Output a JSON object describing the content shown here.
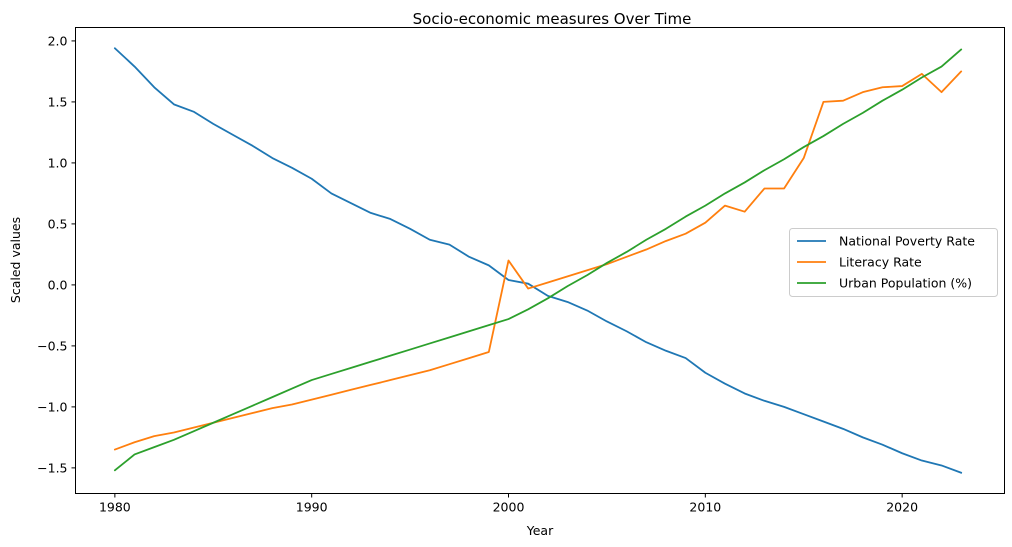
{
  "chart_data": {
    "type": "line",
    "title": "Socio-economic measures Over Time",
    "xlabel": "Year",
    "ylabel": "Scaled values",
    "xlim": [
      1978,
      2025.2
    ],
    "ylim": [
      -1.71,
      2.11
    ],
    "xticks": [
      1980,
      1990,
      2000,
      2010,
      2020
    ],
    "yticks": [
      -1.5,
      -1.0,
      -0.5,
      0.0,
      0.5,
      1.0,
      1.5,
      2.0
    ],
    "ytick_labels": [
      "−1.5",
      "−1.0",
      "−0.5",
      "0.0",
      "0.5",
      "1.0",
      "1.5",
      "2.0"
    ],
    "grid": false,
    "legend_position": "center-right",
    "x": [
      1980,
      1981,
      1982,
      1983,
      1984,
      1985,
      1986,
      1987,
      1988,
      1989,
      1990,
      1991,
      1992,
      1993,
      1994,
      1995,
      1996,
      1997,
      1998,
      1999,
      2000,
      2001,
      2002,
      2003,
      2004,
      2005,
      2006,
      2007,
      2008,
      2009,
      2010,
      2011,
      2012,
      2013,
      2014,
      2015,
      2016,
      2017,
      2018,
      2019,
      2020,
      2021,
      2022,
      2023
    ],
    "series": [
      {
        "name": "National Poverty Rate",
        "color": "#1f77b4",
        "values": [
          1.94,
          1.79,
          1.62,
          1.48,
          1.42,
          1.32,
          1.23,
          1.14,
          1.04,
          0.96,
          0.87,
          0.75,
          0.67,
          0.59,
          0.54,
          0.46,
          0.37,
          0.33,
          0.23,
          0.16,
          0.04,
          0.01,
          -0.09,
          -0.14,
          -0.21,
          -0.3,
          -0.38,
          -0.47,
          -0.54,
          -0.6,
          -0.72,
          -0.81,
          -0.89,
          -0.95,
          -1.0,
          -1.06,
          -1.12,
          -1.18,
          -1.25,
          -1.31,
          -1.38,
          -1.44,
          -1.48,
          -1.54
        ]
      },
      {
        "name": "Literacy Rate",
        "color": "#ff7f0e",
        "values": [
          -1.35,
          -1.29,
          -1.24,
          -1.21,
          -1.17,
          -1.13,
          -1.09,
          -1.05,
          -1.01,
          -0.98,
          -0.94,
          -0.9,
          -0.86,
          -0.82,
          -0.78,
          -0.74,
          -0.7,
          -0.65,
          -0.6,
          -0.55,
          0.2,
          -0.03,
          0.02,
          0.07,
          0.12,
          0.17,
          0.23,
          0.29,
          0.36,
          0.42,
          0.51,
          0.65,
          0.6,
          0.79,
          0.79,
          1.04,
          1.5,
          1.51,
          1.58,
          1.62,
          1.63,
          1.73,
          1.58,
          1.75
        ]
      },
      {
        "name": "Urban Population (%)",
        "color": "#2ca02c",
        "values": [
          -1.52,
          -1.39,
          -1.33,
          -1.27,
          -1.2,
          -1.13,
          -1.06,
          -0.99,
          -0.92,
          -0.85,
          -0.78,
          -0.73,
          -0.68,
          -0.63,
          -0.58,
          -0.53,
          -0.48,
          -0.43,
          -0.38,
          -0.33,
          -0.28,
          -0.2,
          -0.11,
          -0.01,
          0.08,
          0.18,
          0.27,
          0.37,
          0.46,
          0.56,
          0.65,
          0.75,
          0.84,
          0.94,
          1.03,
          1.13,
          1.22,
          1.32,
          1.41,
          1.51,
          1.6,
          1.7,
          1.79,
          1.93
        ]
      }
    ]
  }
}
